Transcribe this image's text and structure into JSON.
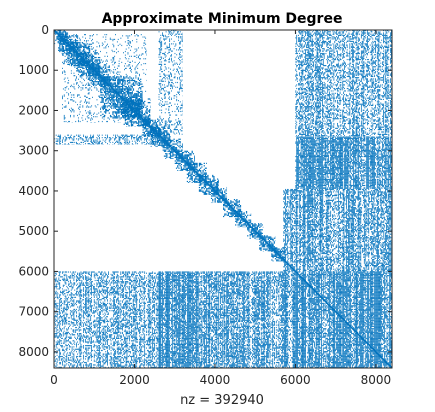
{
  "chart_data": {
    "type": "spy",
    "title": "Approximate Minimum Degree",
    "xlabel": "nz = 392940",
    "ylabel": "",
    "xlim": [
      0,
      8400
    ],
    "ylim": [
      0,
      8400
    ],
    "y_reversed": true,
    "x_ticks": [
      0,
      2000,
      4000,
      6000,
      8000
    ],
    "y_ticks": [
      0,
      1000,
      2000,
      3000,
      4000,
      5000,
      6000,
      7000,
      8000
    ],
    "x_tick_labels": [
      "0",
      "2000",
      "4000",
      "6000",
      "8000"
    ],
    "y_tick_labels": [
      "0",
      "1000",
      "2000",
      "3000",
      "4000",
      "5000",
      "6000",
      "7000",
      "8000"
    ],
    "grid": false,
    "legend": "none",
    "marker_color": "#0072BD",
    "nnz": 392940,
    "matrix_size": 8400,
    "structure": {
      "diagonal_blocks": [
        {
          "start": 0,
          "end": 350
        },
        {
          "start": 100,
          "end": 600
        },
        {
          "start": 300,
          "end": 900
        },
        {
          "start": 550,
          "end": 1150
        },
        {
          "start": 850,
          "end": 1400
        },
        {
          "start": 1150,
          "end": 2200
        },
        {
          "start": 1700,
          "end": 2400
        },
        {
          "start": 2200,
          "end": 2650
        },
        {
          "start": 2400,
          "end": 2900
        },
        {
          "start": 2700,
          "end": 3200
        },
        {
          "start": 3000,
          "end": 3500
        },
        {
          "start": 3300,
          "end": 3800
        },
        {
          "start": 3600,
          "end": 4100
        },
        {
          "start": 3900,
          "end": 4300
        },
        {
          "start": 4200,
          "end": 4650
        },
        {
          "start": 4500,
          "end": 4900
        },
        {
          "start": 4800,
          "end": 5200
        },
        {
          "start": 5100,
          "end": 5500
        },
        {
          "start": 5400,
          "end": 5750
        }
      ],
      "off_diagonal_regions": [
        {
          "rows": [
            0,
            2650
          ],
          "cols": [
            6000,
            8400
          ],
          "density": 0.45
        },
        {
          "rows": [
            2650,
            3950
          ],
          "cols": [
            6000,
            8400
          ],
          "density": 0.72
        },
        {
          "rows": [
            3950,
            6000
          ],
          "cols": [
            5700,
            8400
          ],
          "density": 0.58
        },
        {
          "rows": [
            6000,
            8400
          ],
          "cols": [
            0,
            2600
          ],
          "density": 0.45
        },
        {
          "rows": [
            6000,
            8400
          ],
          "cols": [
            2600,
            3600
          ],
          "density": 0.82
        },
        {
          "rows": [
            6000,
            8400
          ],
          "cols": [
            3600,
            6000
          ],
          "density": 0.58
        },
        {
          "rows": [
            6000,
            8400
          ],
          "cols": [
            6000,
            8400
          ],
          "density": 0.78
        },
        {
          "rows": [
            0,
            2600
          ],
          "cols": [
            2600,
            3200
          ],
          "density": 0.25
        },
        {
          "rows": [
            2600,
            2850
          ],
          "cols": [
            0,
            2600
          ],
          "density": 0.35
        },
        {
          "rows": [
            100,
            2300
          ],
          "cols": [
            200,
            2300
          ],
          "density": 0.12
        }
      ]
    }
  }
}
